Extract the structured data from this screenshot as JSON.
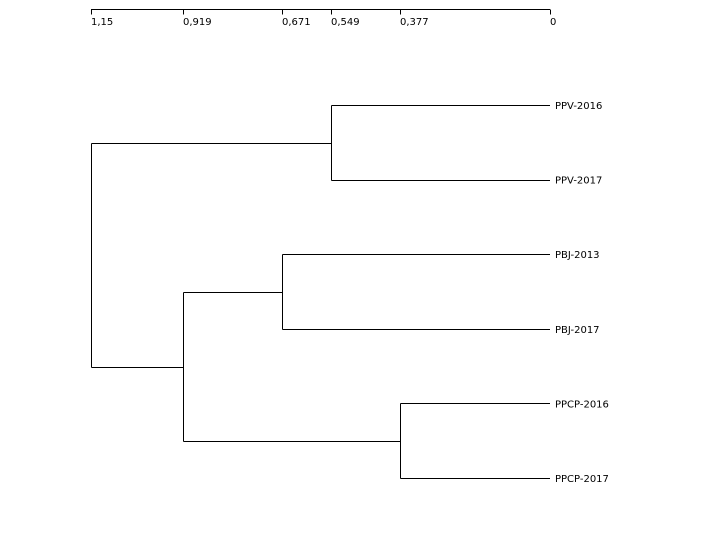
{
  "scale": {
    "ticks": [
      {
        "value": 1.15,
        "label": "1,15"
      },
      {
        "value": 0.919,
        "label": "0,919"
      },
      {
        "value": 0.671,
        "label": "0,671"
      },
      {
        "value": 0.549,
        "label": "0,549"
      },
      {
        "value": 0.377,
        "label": "0,377"
      },
      {
        "value": 0,
        "label": "0"
      }
    ]
  },
  "dendrogram": {
    "leaves": [
      "PPV-2016",
      "PPV-2017",
      "PBJ-2013",
      "PBJ-2017",
      "PPCP-2016",
      "PPCP-2017"
    ],
    "merges": [
      {
        "id": "ppv",
        "height": 0.549,
        "children": [
          "PPV-2016",
          "PPV-2017"
        ]
      },
      {
        "id": "pbj",
        "height": 0.671,
        "children": [
          "PBJ-2013",
          "PBJ-2017"
        ]
      },
      {
        "id": "ppcp",
        "height": 0.377,
        "children": [
          "PPCP-2016",
          "PPCP-2017"
        ]
      },
      {
        "id": "pbj-ppcp",
        "height": 0.919,
        "children": [
          "pbj",
          "ppcp"
        ]
      },
      {
        "id": "root",
        "height": 1.15,
        "children": [
          "ppv",
          "pbj-ppcp"
        ]
      }
    ]
  }
}
